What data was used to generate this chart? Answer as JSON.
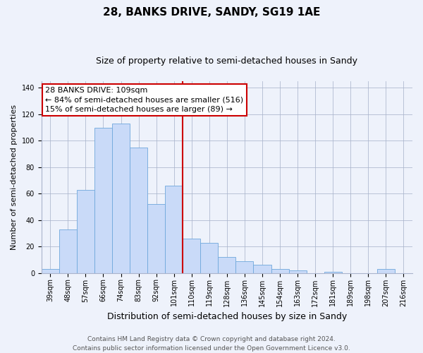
{
  "title": "28, BANKS DRIVE, SANDY, SG19 1AE",
  "subtitle": "Size of property relative to semi-detached houses in Sandy",
  "xlabel": "Distribution of semi-detached houses by size in Sandy",
  "ylabel": "Number of semi-detached properties",
  "bin_labels": [
    "39sqm",
    "48sqm",
    "57sqm",
    "66sqm",
    "74sqm",
    "83sqm",
    "92sqm",
    "101sqm",
    "110sqm",
    "119sqm",
    "128sqm",
    "136sqm",
    "145sqm",
    "154sqm",
    "163sqm",
    "172sqm",
    "181sqm",
    "189sqm",
    "198sqm",
    "207sqm",
    "216sqm"
  ],
  "bar_values": [
    3,
    33,
    63,
    110,
    113,
    95,
    52,
    66,
    26,
    23,
    12,
    9,
    6,
    3,
    2,
    0,
    1,
    0,
    0,
    3,
    0
  ],
  "bar_color": "#c9daf8",
  "bar_edge_color": "#6fa8dc",
  "vline_color": "#cc0000",
  "annotation_text": "28 BANKS DRIVE: 109sqm\n← 84% of semi-detached houses are smaller (516)\n15% of semi-detached houses are larger (89) →",
  "annotation_box_color": "#ffffff",
  "annotation_box_edge_color": "#cc0000",
  "ylim": [
    0,
    145
  ],
  "yticks": [
    0,
    20,
    40,
    60,
    80,
    100,
    120,
    140
  ],
  "background_color": "#eef2fb",
  "footer_text": "Contains HM Land Registry data © Crown copyright and database right 2024.\nContains public sector information licensed under the Open Government Licence v3.0.",
  "title_fontsize": 11,
  "subtitle_fontsize": 9,
  "xlabel_fontsize": 9,
  "ylabel_fontsize": 8,
  "tick_fontsize": 7,
  "annotation_fontsize": 8,
  "footer_fontsize": 6.5
}
